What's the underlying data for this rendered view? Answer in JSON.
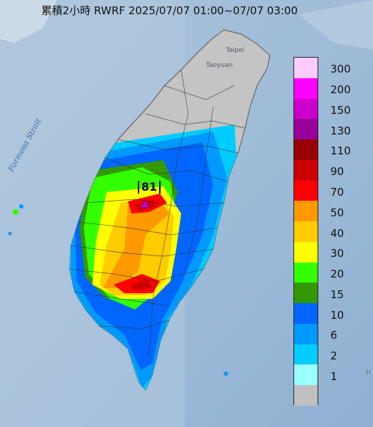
{
  "title": "累積2小時 RWRF 2025/07/07 01:00~07/07 03:00",
  "max_marker_label": "81",
  "places": {
    "strait": "Formosa Strait",
    "taipei": "Taipei",
    "taoyuan": "Taoyuan",
    "edge": "1("
  },
  "legend": {
    "unit_steps": [
      "300",
      "200",
      "150",
      "130",
      "110",
      "90",
      "70",
      "50",
      "40",
      "30",
      "20",
      "15",
      "10",
      "6",
      "2",
      "1"
    ],
    "colors": [
      "#ffccff",
      "#ff00ff",
      "#cc00cc",
      "#990099",
      "#990000",
      "#cc0000",
      "#ff0000",
      "#ff9900",
      "#ffcc00",
      "#ffff00",
      "#33ff00",
      "#339900",
      "#0066ff",
      "#0099ff",
      "#00ccff",
      "#99ffff",
      "#c0c0c0"
    ]
  }
}
